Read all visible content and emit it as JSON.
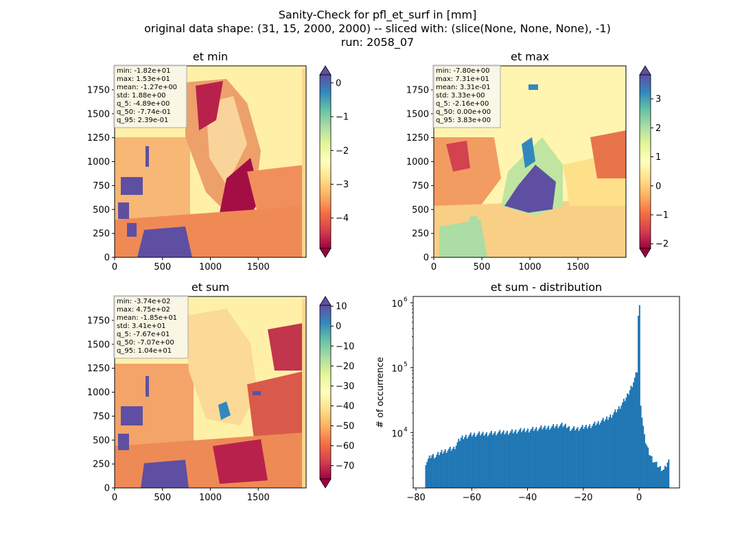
{
  "header": {
    "title": "Sanity-Check for pfl_et_surf in [mm]",
    "shape_line": "original data shape: (31, 15, 2000, 2000) -- sliced with: (slice(None, None, None), -1)",
    "run_line": "run: 2058_07"
  },
  "chart_data": [
    {
      "type": "heatmap",
      "title": "et min",
      "xticks": [
        0,
        500,
        1000,
        1500
      ],
      "yticks": [
        0,
        250,
        500,
        750,
        1000,
        1250,
        1500,
        1750
      ],
      "xlim": [
        0,
        2000
      ],
      "ylim": [
        0,
        2000
      ],
      "colormap": "Spectral",
      "colorbar": {
        "vmin": -4.9,
        "vmax": 0.24,
        "ticks": [
          0,
          -1,
          -2,
          -3,
          -4
        ],
        "extend": "both"
      },
      "stats": [
        "min: -1.82e+01",
        "max: 1.53e+01",
        "mean: -1.27e+00",
        "std: 1.88e+00",
        "q_5: -4.89e+00",
        "q_50: -7.74e-01",
        "q_95: 2.39e-01"
      ]
    },
    {
      "type": "heatmap",
      "title": "et max",
      "xticks": [
        0,
        500,
        1000,
        1500
      ],
      "yticks": [
        0,
        250,
        500,
        750,
        1000,
        1250,
        1500,
        1750
      ],
      "xlim": [
        0,
        2000
      ],
      "ylim": [
        0,
        2000
      ],
      "colormap": "Spectral",
      "colorbar": {
        "vmin": -2.16,
        "vmax": 3.83,
        "ticks": [
          3,
          2,
          1,
          0,
          -1,
          -2
        ],
        "extend": "both"
      },
      "stats": [
        "min: -7.80e+00",
        "max: 7.31e+01",
        "mean: 3.31e-01",
        "std: 3.33e+00",
        "q_5: -2.16e+00",
        "q_50: 0.00e+00",
        "q_95: 3.83e+00"
      ]
    },
    {
      "type": "heatmap",
      "title": "et sum",
      "xticks": [
        0,
        500,
        1000,
        1500
      ],
      "yticks": [
        0,
        250,
        500,
        750,
        1000,
        1250,
        1500,
        1750
      ],
      "xlim": [
        0,
        2000
      ],
      "ylim": [
        0,
        2000
      ],
      "colormap": "Spectral",
      "colorbar": {
        "vmin": -76.7,
        "vmax": 10.4,
        "ticks": [
          10,
          0,
          -10,
          -20,
          -30,
          -40,
          -50,
          -60,
          -70
        ],
        "extend": "both"
      },
      "stats": [
        "min: -3.74e+02",
        "max: 4.75e+02",
        "mean: -1.85e+01",
        "std: 3.41e+01",
        "q_5: -7.67e+01",
        "q_50: -7.07e+00",
        "q_95: 1.04e+01"
      ]
    },
    {
      "type": "bar",
      "title": "et sum - distribution",
      "xlabel": "",
      "ylabel": "# of occurrence",
      "yscale": "log",
      "xlim": [
        -81.0,
        14.5
      ],
      "ylim": [
        1400,
        1250000
      ],
      "xticks": [
        -80,
        -60,
        -40,
        -20,
        0
      ],
      "yticks": [
        {
          "v": 10000,
          "mant": "10",
          "exp": "4"
        },
        {
          "v": 100000,
          "mant": "10",
          "exp": "5"
        },
        {
          "v": 1000000,
          "mant": "10",
          "exp": "6"
        }
      ],
      "color": "#1f77b4",
      "bin_start": -76.7,
      "bin_width": 0.4355,
      "points": [
        [
          -76.7,
          3400
        ],
        [
          -74.4,
          4500
        ],
        [
          -73.0,
          4300
        ],
        [
          -71.0,
          5000
        ],
        [
          -68.5,
          5500
        ],
        [
          -66.5,
          5700
        ],
        [
          -65.0,
          7000
        ],
        [
          -64.0,
          8200
        ],
        [
          -62.0,
          8900
        ],
        [
          -60.0,
          9300
        ],
        [
          -56.0,
          9600
        ],
        [
          -50.0,
          10000
        ],
        [
          -46.0,
          10300
        ],
        [
          -40.0,
          11000
        ],
        [
          -36.0,
          11600
        ],
        [
          -30.0,
          12600
        ],
        [
          -28.0,
          13000
        ],
        [
          -26.0,
          12700
        ],
        [
          -24.5,
          11600
        ],
        [
          -22.0,
          11500
        ],
        [
          -19.0,
          12300
        ],
        [
          -15.0,
          14000
        ],
        [
          -12.0,
          16000
        ],
        [
          -10.0,
          18500
        ],
        [
          -8.0,
          22000
        ],
        [
          -6.0,
          28000
        ],
        [
          -4.5,
          35000
        ],
        [
          -3.5,
          44000
        ],
        [
          -2.5,
          55000
        ],
        [
          -1.5,
          70000
        ],
        [
          -0.7,
          90000
        ],
        [
          -0.2,
          870000
        ],
        [
          0.3,
          40000
        ],
        [
          1.0,
          18000
        ],
        [
          2.0,
          8000
        ],
        [
          3.5,
          5000
        ],
        [
          5.0,
          3800
        ],
        [
          7.0,
          3000
        ],
        [
          9.0,
          2600
        ],
        [
          10.4,
          3600
        ]
      ]
    }
  ]
}
